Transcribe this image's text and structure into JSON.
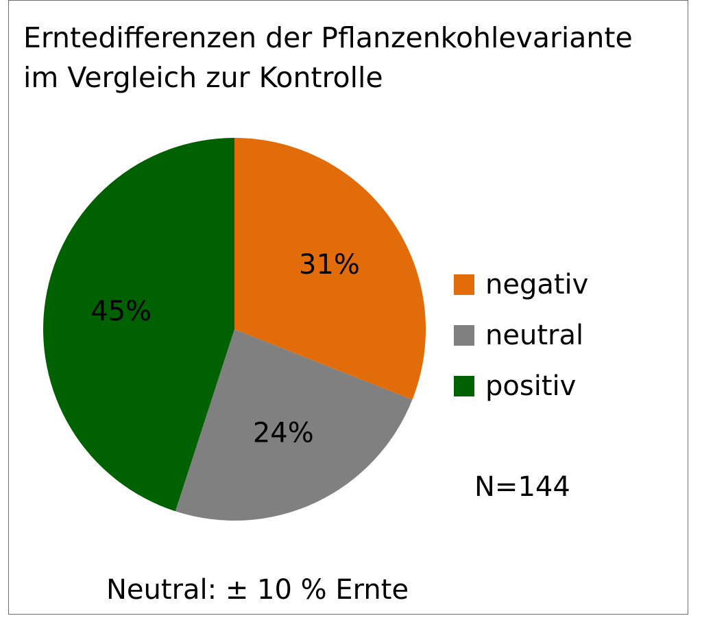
{
  "chart_data": {
    "type": "pie",
    "title_lines": [
      "Erntedifferenzen der Pflanzenkohlevariante",
      "im Vergleich zur Kontrolle"
    ],
    "slices": [
      {
        "label": "negativ",
        "value": 31,
        "display": "31%",
        "color": "#E36C0A"
      },
      {
        "label": "neutral",
        "value": 24,
        "display": "24%",
        "color": "#808080"
      },
      {
        "label": "positiv",
        "value": 45,
        "display": "45%",
        "color": "#006100"
      }
    ],
    "start": "12 o'clock, clockwise",
    "legend_position": "right",
    "sample_size": "N=144",
    "footnote": "Neutral: ± 10 % Ernte"
  }
}
